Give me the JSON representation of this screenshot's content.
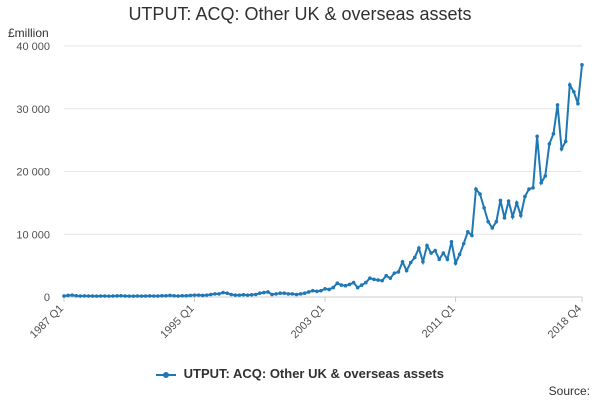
{
  "chart_data": {
    "type": "line",
    "title": "UTPUT: ACQ: Other UK & overseas assets",
    "unit": "£million",
    "source": "Source:",
    "colors": {
      "series": "#1f78b4",
      "grid": "#e6e6e6",
      "axis": "#cccccc"
    },
    "xlabel": "",
    "ylabel": "",
    "ylim": [
      0,
      40000
    ],
    "y_ticks": [
      0,
      10000,
      20000,
      30000,
      40000
    ],
    "y_tick_labels": [
      "0",
      "10 000",
      "20 000",
      "30 000",
      "40 000"
    ],
    "x_tick_labels": [
      "1987 Q1",
      "1995 Q1",
      "2003 Q1",
      "2011 Q1",
      "2018 Q4"
    ],
    "x_tick_indices": [
      0,
      32,
      64,
      96,
      127
    ],
    "grid": "horizontal",
    "legend": "bottom",
    "series": [
      {
        "name": "UTPUT: ACQ: Other UK & overseas assets",
        "x": [
          "1987 Q1",
          "1987 Q2",
          "1987 Q3",
          "1987 Q4",
          "1988 Q1",
          "1988 Q2",
          "1988 Q3",
          "1988 Q4",
          "1989 Q1",
          "1989 Q2",
          "1989 Q3",
          "1989 Q4",
          "1990 Q1",
          "1990 Q2",
          "1990 Q3",
          "1990 Q4",
          "1991 Q1",
          "1991 Q2",
          "1991 Q3",
          "1991 Q4",
          "1992 Q1",
          "1992 Q2",
          "1992 Q3",
          "1992 Q4",
          "1993 Q1",
          "1993 Q2",
          "1993 Q3",
          "1993 Q4",
          "1994 Q1",
          "1994 Q2",
          "1994 Q3",
          "1994 Q4",
          "1995 Q1",
          "1995 Q2",
          "1995 Q3",
          "1995 Q4",
          "1996 Q1",
          "1996 Q2",
          "1996 Q3",
          "1996 Q4",
          "1997 Q1",
          "1997 Q2",
          "1997 Q3",
          "1997 Q4",
          "1998 Q1",
          "1998 Q2",
          "1998 Q3",
          "1998 Q4",
          "1999 Q1",
          "1999 Q2",
          "1999 Q3",
          "1999 Q4",
          "2000 Q1",
          "2000 Q2",
          "2000 Q3",
          "2000 Q4",
          "2001 Q1",
          "2001 Q2",
          "2001 Q3",
          "2001 Q4",
          "2002 Q1",
          "2002 Q2",
          "2002 Q3",
          "2002 Q4",
          "2003 Q1",
          "2003 Q2",
          "2003 Q3",
          "2003 Q4",
          "2004 Q1",
          "2004 Q2",
          "2004 Q3",
          "2004 Q4",
          "2005 Q1",
          "2005 Q2",
          "2005 Q3",
          "2005 Q4",
          "2006 Q1",
          "2006 Q2",
          "2006 Q3",
          "2006 Q4",
          "2007 Q1",
          "2007 Q2",
          "2007 Q3",
          "2007 Q4",
          "2008 Q1",
          "2008 Q2",
          "2008 Q3",
          "2008 Q4",
          "2009 Q1",
          "2009 Q2",
          "2009 Q3",
          "2009 Q4",
          "2010 Q1",
          "2010 Q2",
          "2010 Q3",
          "2010 Q4",
          "2011 Q1",
          "2011 Q2",
          "2011 Q3",
          "2011 Q4",
          "2012 Q1",
          "2012 Q2",
          "2012 Q3",
          "2012 Q4",
          "2013 Q1",
          "2013 Q2",
          "2013 Q3",
          "2013 Q4",
          "2014 Q1",
          "2014 Q2",
          "2014 Q3",
          "2014 Q4",
          "2015 Q1",
          "2015 Q2",
          "2015 Q3",
          "2015 Q4",
          "2016 Q1",
          "2016 Q2",
          "2016 Q3",
          "2016 Q4",
          "2017 Q1",
          "2017 Q2",
          "2017 Q3",
          "2017 Q4",
          "2018 Q1",
          "2018 Q2",
          "2018 Q3",
          "2018 Q4"
        ],
        "values": [
          150,
          250,
          300,
          200,
          150,
          180,
          150,
          160,
          140,
          150,
          150,
          140,
          150,
          180,
          200,
          150,
          140,
          130,
          150,
          140,
          160,
          180,
          150,
          160,
          200,
          200,
          250,
          200,
          150,
          200,
          200,
          250,
          300,
          300,
          250,
          300,
          400,
          500,
          500,
          700,
          600,
          400,
          300,
          300,
          350,
          300,
          350,
          400,
          600,
          700,
          800,
          400,
          500,
          600,
          600,
          500,
          500,
          400,
          500,
          600,
          800,
          1000,
          900,
          1000,
          1300,
          1200,
          1500,
          2200,
          1900,
          1800,
          2000,
          2300,
          1500,
          1900,
          2300,
          3000,
          2800,
          2700,
          2600,
          3400,
          3000,
          3800,
          4000,
          5600,
          4200,
          5500,
          6300,
          7800,
          5600,
          8200,
          7000,
          7400,
          6000,
          7000,
          6000,
          8800,
          5400,
          6800,
          8500,
          10400,
          9800,
          17200,
          16400,
          14200,
          12000,
          11000,
          12000,
          15400,
          12600,
          15300,
          12800,
          15000,
          13000,
          16000,
          17200,
          17400,
          25600,
          18200,
          19300,
          24400,
          26000,
          30600,
          23600,
          24800,
          33800,
          32700,
          30800,
          37000
        ]
      }
    ]
  }
}
